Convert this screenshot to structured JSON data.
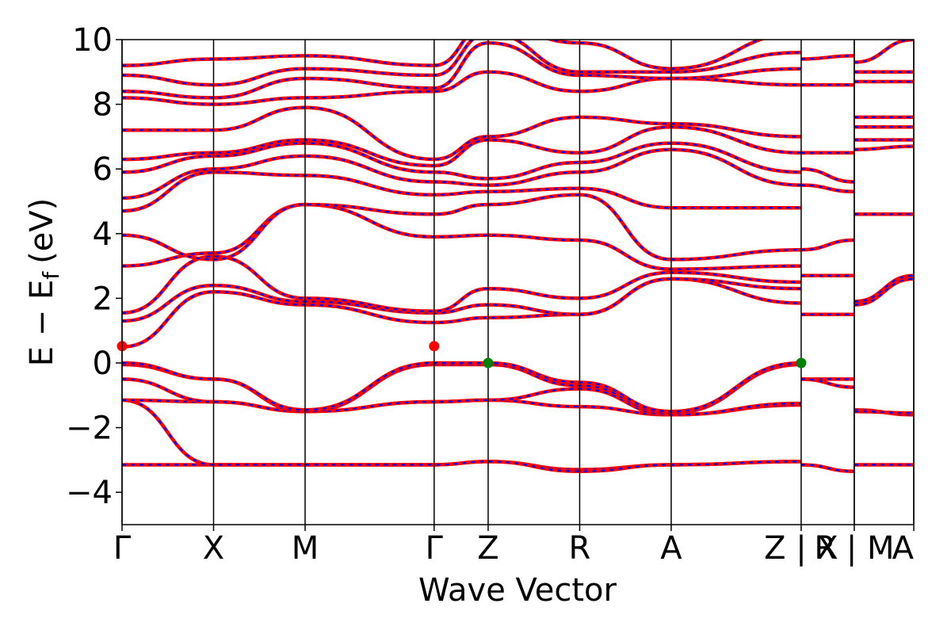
{
  "chart_data": {
    "type": "line",
    "xlabel": "Wave Vector",
    "ylabel": "E − E",
    "ylabel_sub": "f",
    "ylabel_unit": "(eV)",
    "ylim": [
      -5,
      10
    ],
    "yticks": [
      "−4",
      "−2",
      "0",
      "2",
      "4",
      "6",
      "8",
      "10"
    ],
    "ytick_values": [
      -4,
      -2,
      0,
      2,
      4,
      6,
      8,
      10
    ],
    "xlim": [
      0,
      8.65
    ],
    "kpoints": [
      {
        "label": "Γ",
        "x": 0.0
      },
      {
        "label": "X",
        "x": 1.0
      },
      {
        "label": "M",
        "x": 2.0
      },
      {
        "label": "Γ",
        "x": 3.41
      },
      {
        "label": "Z",
        "x": 4.0
      },
      {
        "label": "R",
        "x": 5.0
      },
      {
        "label": "A",
        "x": 6.0
      },
      {
        "label": "Z | X",
        "x": 7.42
      },
      {
        "label": "R | M",
        "x": 8.0
      },
      {
        "label": "A",
        "x": 8.65
      }
    ],
    "series_styles": {
      "spin_up": "#ff0000",
      "spin_down": "#0000ff"
    },
    "segments": [
      {
        "x": [
          0,
          1,
          2,
          3.41,
          4,
          5,
          6,
          7.42
        ],
        "bands": [
          [
            -3.15,
            -3.15,
            -3.15,
            -3.15,
            -3.05,
            -3.3,
            -3.15,
            -3.05
          ],
          [
            -1.15,
            -3.15,
            -3.15,
            -3.15,
            -3.05,
            -3.35,
            -3.15,
            -3.05
          ],
          [
            -1.15,
            -1.2,
            -1.5,
            -1.2,
            -1.15,
            -1.35,
            -1.6,
            -1.3
          ],
          [
            -0.5,
            -1.2,
            -1.5,
            -1.2,
            -1.15,
            -0.8,
            -1.6,
            -1.25
          ],
          [
            -0.05,
            -0.5,
            -1.5,
            -0.05,
            -0.05,
            -0.7,
            -1.55,
            -0.05
          ],
          [
            0.0,
            -0.5,
            -1.45,
            0.0,
            0.0,
            -0.6,
            -1.5,
            0.0
          ],
          [
            0.5,
            2.2,
            1.8,
            1.25,
            1.4,
            1.5,
            2.6,
            1.85
          ],
          [
            1.3,
            2.4,
            1.9,
            1.55,
            1.8,
            1.5,
            2.6,
            2.3
          ],
          [
            1.55,
            3.3,
            2.0,
            1.6,
            2.3,
            2.0,
            2.8,
            2.5
          ],
          [
            3.0,
            3.4,
            4.9,
            3.9,
            3.95,
            3.8,
            2.9,
            3.0
          ],
          [
            3.95,
            3.2,
            4.9,
            4.6,
            4.9,
            5.2,
            3.2,
            3.5
          ],
          [
            4.7,
            5.9,
            5.8,
            5.2,
            5.3,
            5.4,
            4.8,
            4.8
          ],
          [
            5.1,
            6.0,
            6.4,
            5.6,
            5.5,
            5.9,
            6.6,
            5.5
          ],
          [
            5.9,
            6.4,
            6.8,
            5.9,
            5.7,
            6.2,
            6.8,
            5.9
          ],
          [
            6.3,
            6.5,
            6.9,
            6.1,
            6.9,
            6.5,
            7.3,
            6.5
          ],
          [
            7.2,
            7.2,
            7.9,
            6.3,
            7.0,
            7.6,
            7.4,
            7.0
          ],
          [
            8.2,
            8.0,
            8.2,
            8.4,
            9.0,
            8.4,
            8.8,
            8.6
          ],
          [
            8.4,
            8.2,
            8.8,
            8.5,
            9.9,
            8.9,
            8.8,
            9.1
          ],
          [
            8.9,
            8.6,
            9.1,
            8.9,
            10.2,
            9.0,
            9.0,
            9.6
          ],
          [
            9.2,
            9.4,
            9.5,
            9.2,
            10.5,
            9.9,
            9.1,
            10.2
          ]
        ]
      },
      {
        "x": [
          7.42,
          8.0
        ],
        "bands": [
          [
            -3.15,
            -3.35
          ],
          [
            -0.5,
            -0.5
          ],
          [
            -0.5,
            -0.75
          ],
          [
            1.5,
            1.5
          ],
          [
            2.7,
            2.7
          ],
          [
            3.5,
            3.8
          ],
          [
            5.5,
            5.3
          ],
          [
            6.0,
            5.6
          ],
          [
            6.5,
            6.5
          ],
          [
            8.6,
            8.6
          ],
          [
            9.4,
            9.5
          ]
        ]
      },
      {
        "x": [
          8.0,
          8.65
        ],
        "bands": [
          [
            -3.15,
            -3.15
          ],
          [
            -1.45,
            -1.6
          ],
          [
            -1.5,
            -1.55
          ],
          [
            1.8,
            2.6
          ],
          [
            1.9,
            2.7
          ],
          [
            4.6,
            4.6
          ],
          [
            6.6,
            6.7
          ],
          [
            6.9,
            6.9
          ],
          [
            7.3,
            7.3
          ],
          [
            7.6,
            7.6
          ],
          [
            8.7,
            8.7
          ],
          [
            9.0,
            9.0
          ],
          [
            9.3,
            10.0
          ]
        ]
      }
    ],
    "markers": [
      {
        "x": 0.0,
        "y": 0.52,
        "color": "#ff0000"
      },
      {
        "x": 3.41,
        "y": 0.52,
        "color": "#ff0000"
      },
      {
        "x": 4.0,
        "y": 0.0,
        "color": "#008000"
      },
      {
        "x": 7.42,
        "y": 0.0,
        "color": "#008000"
      }
    ]
  }
}
